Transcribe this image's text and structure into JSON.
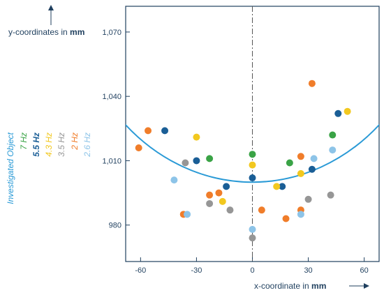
{
  "chart_data": {
    "type": "scatter",
    "xlabel": "x-coordinate in",
    "xlabel_unit": "mm",
    "ylabel": "y-coordinates in",
    "ylabel_unit": "mm",
    "xlim": [
      -68,
      68
    ],
    "ylim": [
      963,
      1082
    ],
    "xticks": [
      {
        "value": -60,
        "label": "-60"
      },
      {
        "value": -30,
        "label": "-30"
      },
      {
        "value": 0,
        "label": "0"
      },
      {
        "value": 30,
        "label": "30"
      },
      {
        "value": 60,
        "label": "60"
      }
    ],
    "yticks": [
      {
        "value": 980,
        "label": "980"
      },
      {
        "value": 1010,
        "label": "1,010"
      },
      {
        "value": 1040,
        "label": "1,040"
      },
      {
        "value": 1070,
        "label": "1,070"
      }
    ],
    "grid": false,
    "legend_position": "left (rotated, vertical)",
    "reference_line": {
      "x": 0,
      "style": "dash-dot",
      "color": "#555555"
    },
    "object": {
      "name": "Investigated Object",
      "color": "#2a9ad6",
      "shape": "circular arc",
      "center": [
        0,
        1100
      ],
      "radius": 100
    },
    "series": [
      {
        "name": "7 Hz",
        "color": "#3aa346",
        "points": [
          [
            -23,
            1011
          ],
          [
            0,
            1013
          ],
          [
            20,
            1009
          ],
          [
            43,
            1022
          ]
        ]
      },
      {
        "name": "5.5 Hz",
        "color": "#1a5e96",
        "points": [
          [
            -47,
            1024
          ],
          [
            -30,
            1010
          ],
          [
            -14,
            998
          ],
          [
            0,
            1002
          ],
          [
            16,
            998
          ],
          [
            32,
            1006
          ],
          [
            46,
            1032
          ]
        ]
      },
      {
        "name": "4.3 Hz",
        "color": "#f2c81f",
        "points": [
          [
            -30,
            1021
          ],
          [
            -16,
            991
          ],
          [
            0,
            1008
          ],
          [
            13,
            998
          ],
          [
            26,
            1004
          ],
          [
            51,
            1033
          ]
        ]
      },
      {
        "name": "3.5 Hz",
        "color": "#969696",
        "points": [
          [
            -36,
            1009
          ],
          [
            -23,
            990
          ],
          [
            -12,
            987
          ],
          [
            0,
            974
          ],
          [
            30,
            992
          ],
          [
            42,
            994
          ]
        ]
      },
      {
        "name": "2 Hz",
        "color": "#f07d2a",
        "points": [
          [
            -61,
            1016
          ],
          [
            -56,
            1024
          ],
          [
            -37,
            985
          ],
          [
            -23,
            994
          ],
          [
            -18,
            995
          ],
          [
            5,
            987
          ],
          [
            18,
            983
          ],
          [
            26,
            1012
          ],
          [
            26,
            987
          ],
          [
            32,
            1046
          ]
        ]
      },
      {
        "name": "2.6 Hz",
        "color": "#8dc4e8",
        "points": [
          [
            -42,
            1001
          ],
          [
            -35,
            985
          ],
          [
            0,
            978
          ],
          [
            26,
            985
          ],
          [
            33,
            1011
          ],
          [
            43,
            1015
          ]
        ]
      }
    ],
    "legend_order": [
      "Investigated Object",
      "7 Hz",
      "5.5 Hz",
      "4.3 Hz",
      "3.5 Hz",
      "2 Hz",
      "2.6 Hz"
    ]
  }
}
